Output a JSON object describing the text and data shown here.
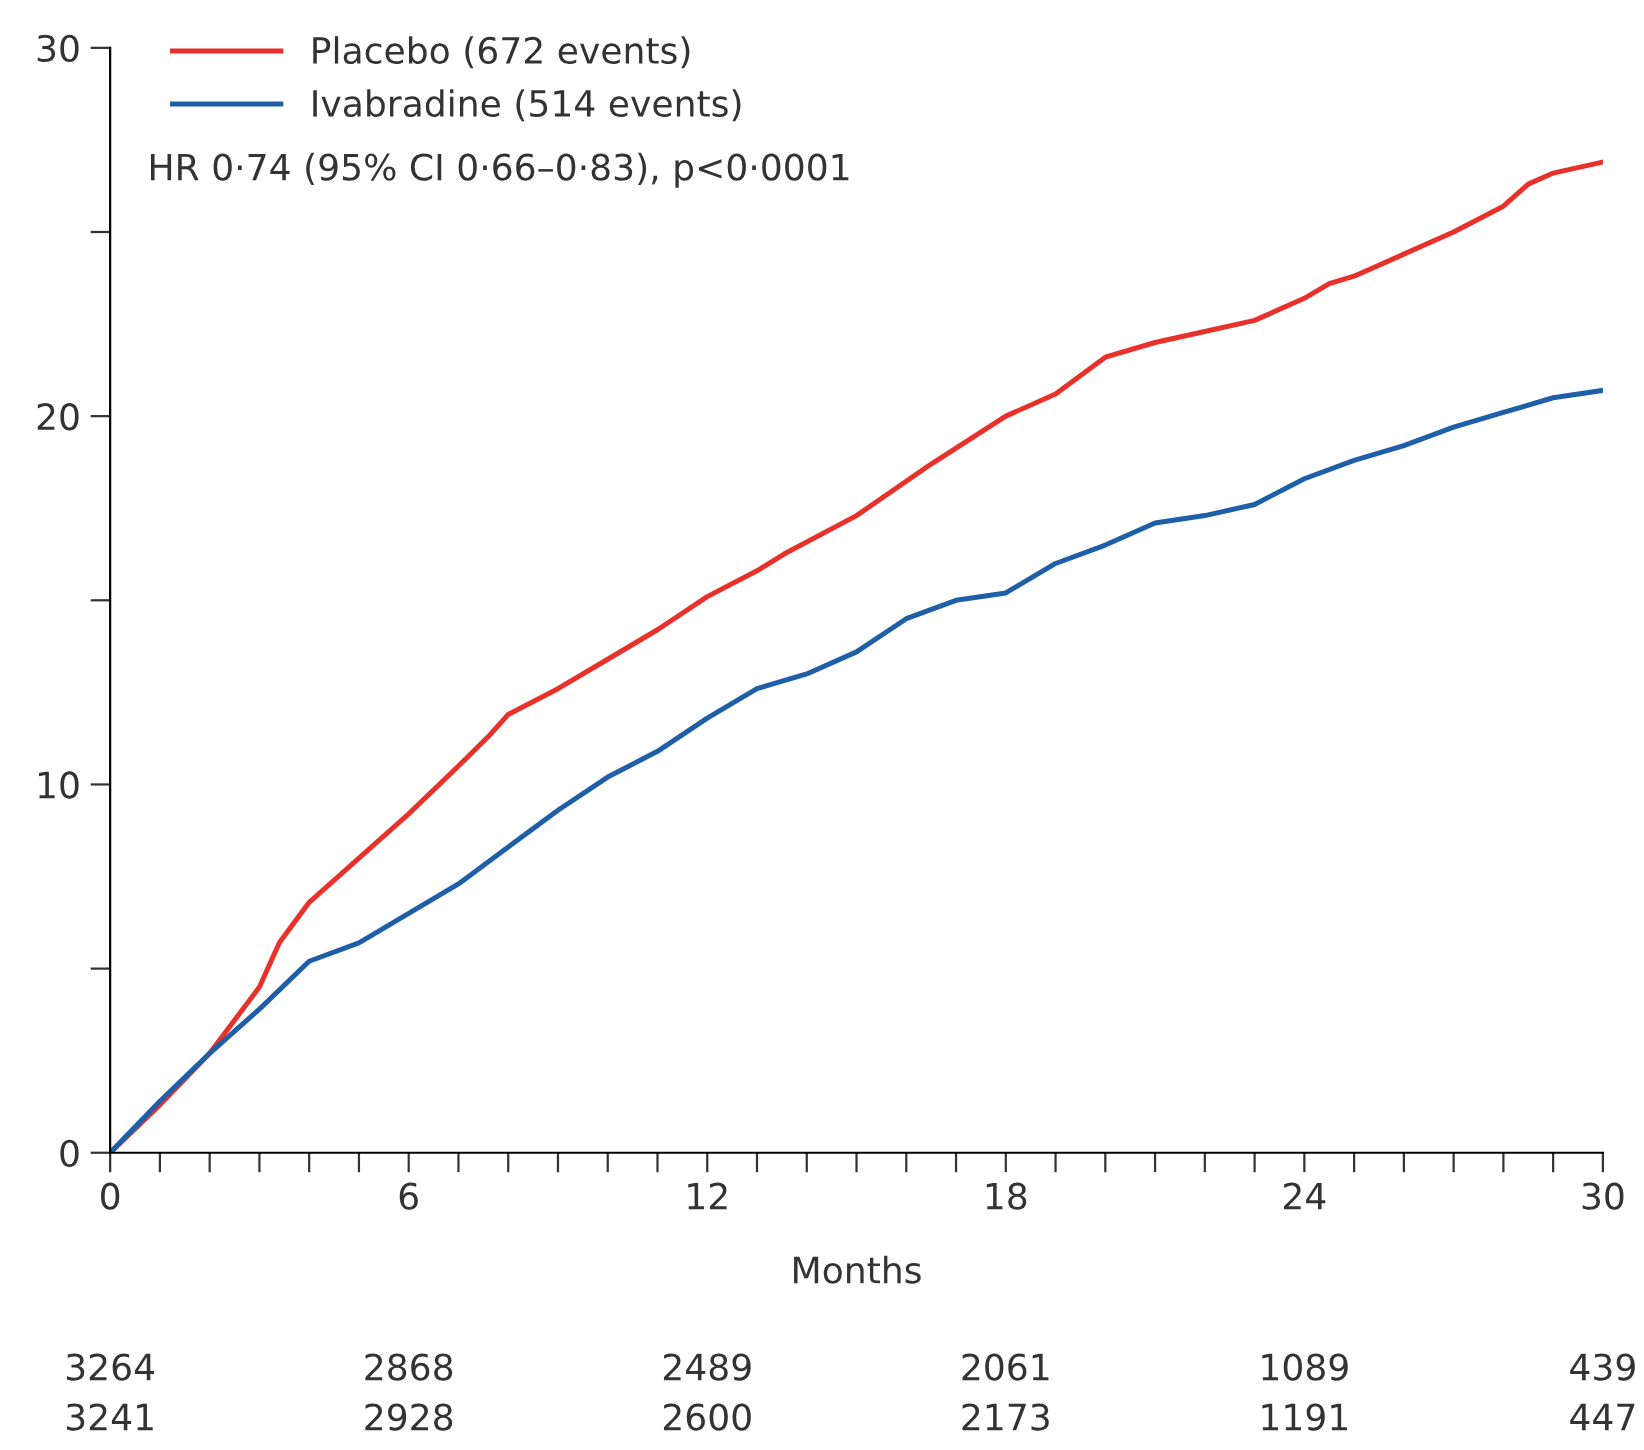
{
  "chart_data": {
    "type": "line",
    "xlabel": "Months",
    "xlim": [
      0,
      30
    ],
    "ylim": [
      0,
      30
    ],
    "xticks": [
      0,
      {
        "value": 1,
        "label": null
      },
      {
        "value": 2,
        "label": null
      },
      {
        "value": 3,
        "label": null
      },
      {
        "value": 4,
        "label": null
      },
      {
        "value": 5,
        "label": null
      },
      6,
      {
        "value": 7,
        "label": null
      },
      {
        "value": 8,
        "label": null
      },
      {
        "value": 9,
        "label": null
      },
      {
        "value": 10,
        "label": null
      },
      {
        "value": 11,
        "label": null
      },
      12,
      {
        "value": 13,
        "label": null
      },
      {
        "value": 14,
        "label": null
      },
      {
        "value": 15,
        "label": null
      },
      {
        "value": 16,
        "label": null
      },
      {
        "value": 17,
        "label": null
      },
      18,
      {
        "value": 19,
        "label": null
      },
      {
        "value": 20,
        "label": null
      },
      {
        "value": 21,
        "label": null
      },
      {
        "value": 22,
        "label": null
      },
      {
        "value": 23,
        "label": null
      },
      24,
      {
        "value": 25,
        "label": null
      },
      {
        "value": 26,
        "label": null
      },
      {
        "value": 27,
        "label": null
      },
      {
        "value": 28,
        "label": null
      },
      {
        "value": 29,
        "label": null
      },
      30
    ],
    "yticks": [
      0,
      {
        "value": 5,
        "label": null
      },
      10,
      {
        "value": 15,
        "label": null
      },
      20,
      {
        "value": 25,
        "label": null
      },
      30
    ],
    "legend": "top left",
    "grid": false,
    "marker": "none",
    "line_style": "solid",
    "series": [
      {
        "name": "Placebo (672 events)",
        "color": "#e8312a",
        "x": [
          0,
          1,
          2,
          3,
          3.4,
          4,
          5,
          6,
          7,
          7.6,
          8,
          9,
          10,
          11,
          12,
          13,
          13.6,
          15,
          16.5,
          18,
          19,
          20,
          21,
          22,
          23,
          24,
          24.5,
          25,
          26,
          27,
          28,
          28.5,
          29,
          30
        ],
        "values": [
          0,
          1.3,
          2.7,
          4.5,
          5.7,
          6.8,
          8.0,
          9.2,
          10.5,
          11.3,
          11.9,
          12.6,
          13.4,
          14.2,
          15.1,
          15.8,
          16.3,
          17.3,
          18.7,
          20.0,
          20.6,
          21.6,
          22.0,
          22.3,
          22.6,
          23.2,
          23.6,
          23.8,
          24.4,
          25.0,
          25.7,
          26.3,
          26.6,
          26.9
        ]
      },
      {
        "name": "Ivabradine (514 events)",
        "color": "#1f5fa8",
        "x": [
          0,
          1,
          2,
          3,
          4,
          5,
          6,
          7,
          8,
          9,
          10,
          11,
          12,
          13,
          14,
          15,
          16,
          17,
          18,
          19,
          20,
          21,
          22,
          23,
          24,
          25,
          26,
          27,
          28,
          29,
          30
        ],
        "values": [
          0,
          1.4,
          2.7,
          3.9,
          5.2,
          5.7,
          6.5,
          7.3,
          8.3,
          9.3,
          10.2,
          10.9,
          11.8,
          12.6,
          13.0,
          13.6,
          14.5,
          15.0,
          15.2,
          16.0,
          16.5,
          17.1,
          17.3,
          17.6,
          18.3,
          18.8,
          19.2,
          19.7,
          20.1,
          20.5,
          20.7
        ]
      }
    ],
    "annotations": [
      "HR 0·74 (95% CI 0·66–0·83), p<0·0001",
      "3264",
      "2868",
      "2489",
      "2061",
      "1089",
      "439",
      "3241",
      "2928",
      "2600",
      "2173",
      "1191",
      "447"
    ]
  }
}
